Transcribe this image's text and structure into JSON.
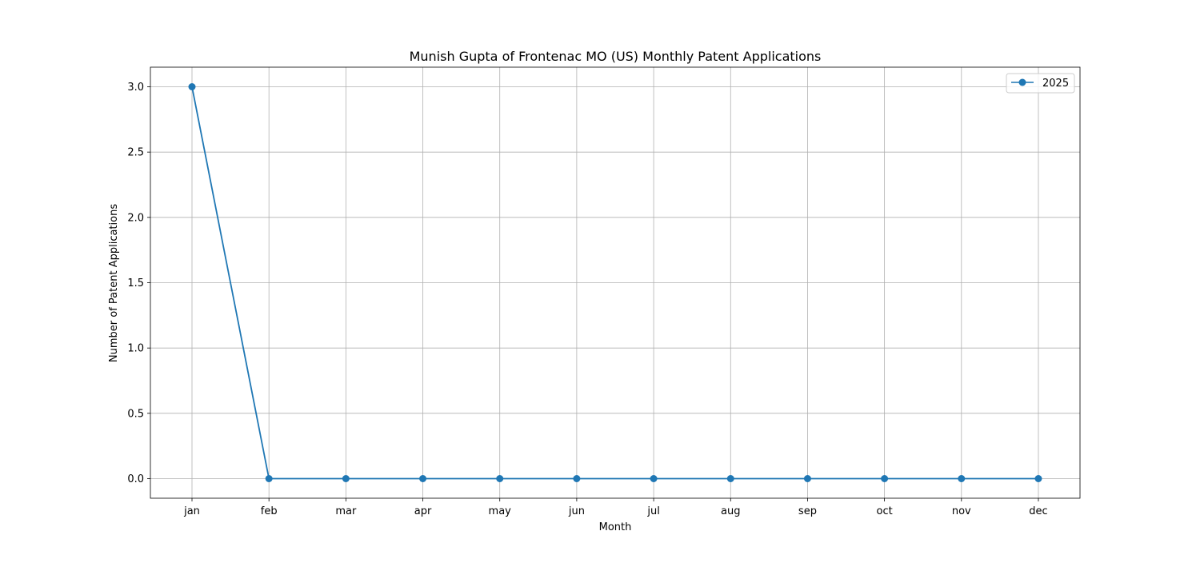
{
  "chart_data": {
    "type": "line",
    "title": "Munish Gupta of Frontenac MO (US) Monthly Patent Applications",
    "xlabel": "Month",
    "ylabel": "Number of Patent Applications",
    "categories": [
      "jan",
      "feb",
      "mar",
      "apr",
      "may",
      "jun",
      "jul",
      "aug",
      "sep",
      "oct",
      "nov",
      "dec"
    ],
    "series": [
      {
        "name": "2025",
        "values": [
          3,
          0,
          0,
          0,
          0,
          0,
          0,
          0,
          0,
          0,
          0,
          0
        ],
        "color": "#1f77b4",
        "marker": "circle"
      }
    ],
    "ylim": [
      -0.15,
      3.15
    ],
    "yticks": [
      "0.0",
      "0.5",
      "1.0",
      "1.5",
      "2.0",
      "2.5",
      "3.0"
    ],
    "ytick_values": [
      0,
      0.5,
      1,
      1.5,
      2,
      2.5,
      3
    ],
    "grid": true,
    "legend_position": "top-right"
  }
}
